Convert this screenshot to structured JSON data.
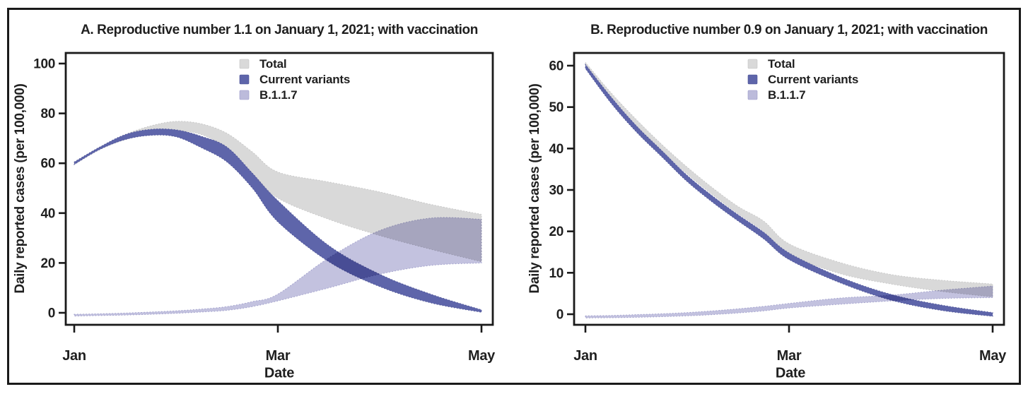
{
  "figure": {
    "kind": "two-panel uncertainty-band projection figure",
    "border_color": "#1a1a1a",
    "background": "#ffffff"
  },
  "chart_data": [
    {
      "type": "area",
      "panel": "A",
      "title": "A. Reproductive number 1.1 on January 1, 2021; with vaccination",
      "xlabel": "Date",
      "ylabel": "Daily reported cases (per 100,000)",
      "x_unit": "months after January 1, 2021",
      "xlim_months": [
        0,
        4
      ],
      "ylim": [
        0,
        100
      ],
      "grid": false,
      "legend_position": "top-center-inside",
      "y_ticks": [
        0,
        20,
        40,
        60,
        80,
        100
      ],
      "x_ticks": [
        {
          "label": "Jan",
          "m": 0
        },
        {
          "label": "Mar",
          "m": 2
        },
        {
          "label": "May",
          "m": 4
        }
      ],
      "x_months": [
        0,
        0.25,
        0.5,
        0.75,
        1,
        1.25,
        1.5,
        1.75,
        2,
        2.5,
        3,
        3.5,
        4
      ],
      "series": [
        {
          "name": "Total",
          "color": "#d9d9d9",
          "edge": "#c3c3c3",
          "blend": "normal",
          "hi": [
            60.5,
            66.5,
            71.5,
            75,
            76.8,
            75.8,
            72,
            64.5,
            56.5,
            52.5,
            48.5,
            43.5,
            39.5
          ],
          "lo": [
            59.5,
            65.5,
            69.5,
            72,
            73,
            71.5,
            66,
            56,
            46,
            37.5,
            31,
            25.5,
            20.5
          ]
        },
        {
          "name": "Current variants",
          "color": "#5e65aa",
          "edge": "#4b5295",
          "blend": "normal",
          "hi": [
            60.5,
            66.5,
            71.5,
            73.6,
            73.4,
            70.8,
            66.5,
            56,
            45,
            27,
            15.5,
            7.5,
            1.2
          ],
          "lo": [
            59.5,
            65.5,
            69.5,
            71.2,
            70.6,
            66.2,
            60.5,
            50,
            36.5,
            20.5,
            10.5,
            4,
            0.2
          ]
        },
        {
          "name": "B.1.1.7",
          "color": "#bcbbdb",
          "edge": "#9b9ac9",
          "blend": "multiply",
          "hi": [
            -0.6,
            -0.4,
            -0.1,
            0.3,
            0.8,
            1.5,
            2.5,
            4.5,
            7.5,
            22,
            33,
            38,
            37.5
          ],
          "lo": [
            -1.3,
            -1.1,
            -0.9,
            -0.6,
            -0.2,
            0.3,
            1,
            2.5,
            4.8,
            10,
            15.5,
            19,
            20
          ]
        }
      ]
    },
    {
      "type": "area",
      "panel": "B",
      "title": "B. Reproductive number 0.9 on January 1, 2021; with vaccination",
      "xlabel": "Date",
      "ylabel": "Daily reported cases (per 100,000)",
      "x_unit": "months after January 1, 2021",
      "xlim_months": [
        0,
        4
      ],
      "ylim": [
        0,
        60
      ],
      "grid": false,
      "legend_position": "top-center-inside",
      "y_ticks": [
        0,
        10,
        20,
        30,
        40,
        50,
        60
      ],
      "x_ticks": [
        {
          "label": "Jan",
          "m": 0
        },
        {
          "label": "Mar",
          "m": 2
        },
        {
          "label": "May",
          "m": 4
        }
      ],
      "x_months": [
        0,
        0.25,
        0.5,
        0.75,
        1,
        1.25,
        1.5,
        1.75,
        2,
        2.5,
        3,
        3.5,
        4
      ],
      "series": [
        {
          "name": "Total",
          "color": "#d9d9d9",
          "edge": "#c3c3c3",
          "blend": "normal",
          "hi": [
            60.8,
            53.5,
            47,
            41,
            35.5,
            30.5,
            26,
            22.5,
            17,
            12.5,
            9.6,
            8.2,
            7.3
          ],
          "lo": [
            59.8,
            52,
            45.5,
            39.5,
            33.8,
            28.8,
            24.2,
            20,
            14.5,
            9.8,
            7.3,
            5.5,
            4.2
          ]
        },
        {
          "name": "Current variants",
          "color": "#5e65aa",
          "edge": "#4b5295",
          "blend": "normal",
          "hi": [
            60.3,
            52.5,
            45.5,
            39.5,
            33.5,
            28.5,
            24,
            19.8,
            14.8,
            9,
            4.8,
            2.2,
            0.4
          ],
          "lo": [
            59.3,
            51,
            44,
            38,
            32,
            27,
            22.5,
            18.2,
            13.2,
            7.6,
            3.4,
            0.9,
            -0.5
          ]
        },
        {
          "name": "B.1.1.7",
          "color": "#bcbbdb",
          "edge": "#9b9ac9",
          "blend": "multiply",
          "hi": [
            -0.4,
            -0.3,
            -0.1,
            0.1,
            0.4,
            0.8,
            1.3,
            1.9,
            2.6,
            3.9,
            4.6,
            5.8,
            6.8
          ],
          "lo": [
            -0.9,
            -0.85,
            -0.75,
            -0.6,
            -0.4,
            -0.1,
            0.3,
            0.8,
            1.5,
            2.4,
            3.2,
            3.8,
            4.0
          ]
        }
      ]
    }
  ]
}
